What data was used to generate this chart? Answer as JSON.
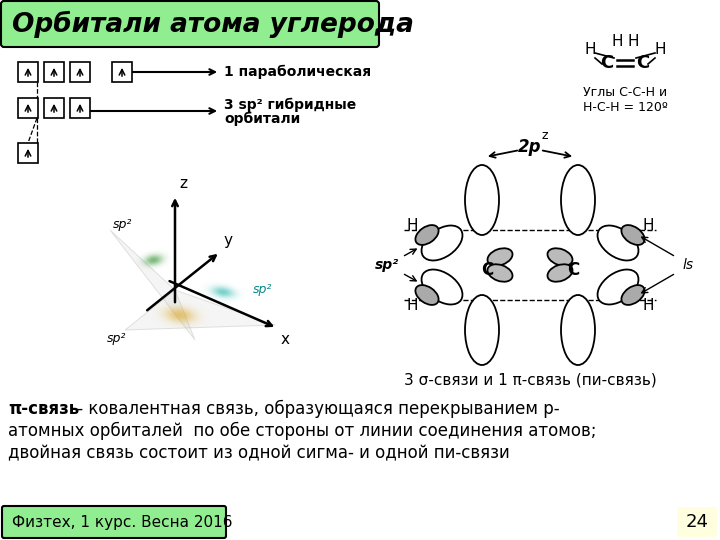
{
  "bg": "#FFFFFF",
  "title": "Орбитали атома углерода",
  "title_bg": "#90EE90",
  "bottom_label": "Физтех, 1 курс. Весна 2016",
  "bottom_bg": "#90EE90",
  "page_num": "24",
  "page_num_bg": "#FFFFE0",
  "def_bold": "π-связь",
  "def1": " - ковалентная связь, образующаяся перекрыванием р-",
  "def2": "атомных орбиталей  по обе стороны от линии соединения атомов;",
  "def3": "двойная связь состоит из одной сигма- и одной пи-связи",
  "sigma_pi": "3 σ-связи и 1 π-связь (пи-связь)",
  "angles": "Углы C-C-H и\nH-C-H = 120º",
  "label_1p": "1 параболическая",
  "label_sp2a": "3 sp² гибридные",
  "label_sp2b": "орбитали"
}
